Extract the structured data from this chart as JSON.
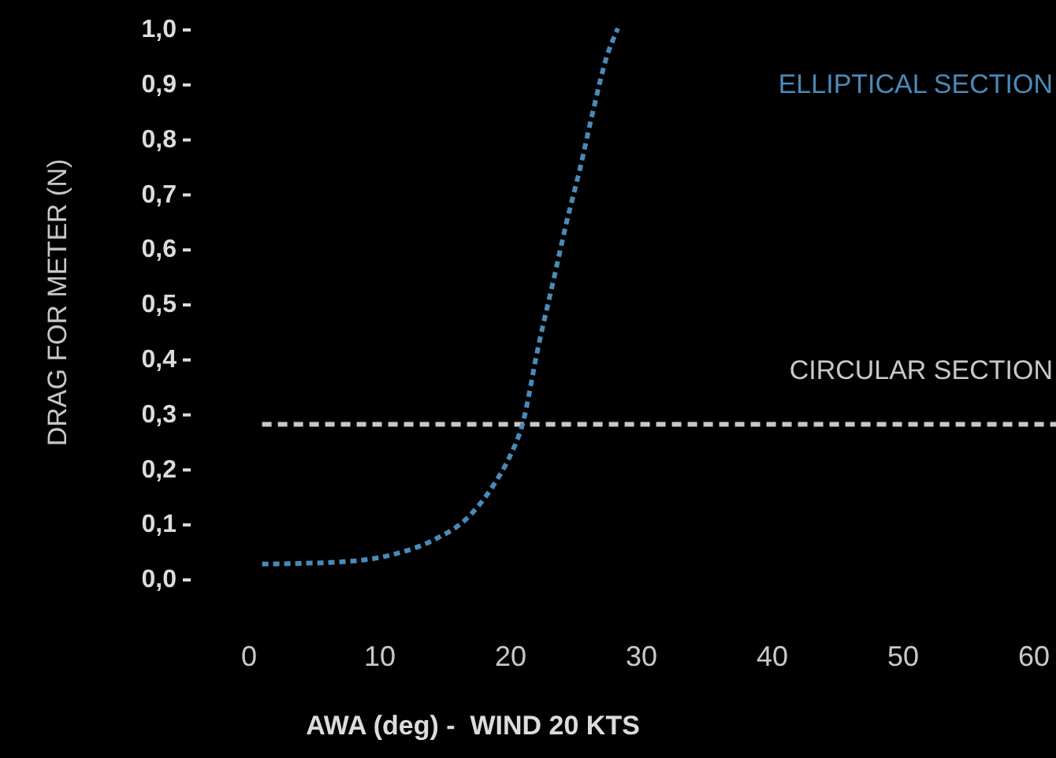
{
  "chart_data": {
    "type": "line",
    "xlabel": "AWA (deg) -  WIND 20 KTS",
    "ylabel": "DRAG FOR METER (N)",
    "xlim": [
      0,
      60
    ],
    "xticks": [
      0,
      10,
      20,
      30,
      40,
      50,
      60
    ],
    "ylim": [
      0,
      1
    ],
    "yticks": [
      {
        "value": 0,
        "label": "0,0"
      },
      {
        "value": 0.1,
        "label": "0,1"
      },
      {
        "value": 0.2,
        "label": "0,2"
      },
      {
        "value": 0.3,
        "label": "0,3"
      },
      {
        "value": 0.4,
        "label": "0,4"
      },
      {
        "value": 0.5,
        "label": "0,5"
      },
      {
        "value": 0.6,
        "label": "0,6"
      },
      {
        "value": 0.7,
        "label": "0,7"
      },
      {
        "value": 0.8,
        "label": "0,8"
      },
      {
        "value": 0.9,
        "label": "0,9"
      },
      {
        "value": 1,
        "label": "1,0"
      }
    ],
    "series": [
      {
        "name": "ELLIPTICAL SECTION",
        "color": "#4a8ab8",
        "x": [
          1,
          7.1,
          11.1,
          14.3,
          16.7,
          18.7,
          19.9,
          20.9,
          22.1,
          23.3,
          24.3,
          25.3,
          26.3,
          27.3,
          28.2
        ],
        "values": [
          0.026,
          0.03,
          0.044,
          0.072,
          0.11,
          0.17,
          0.22,
          0.28,
          0.42,
          0.545,
          0.65,
          0.745,
          0.85,
          0.945,
          1
        ]
      }
    ],
    "ref_lines": [
      {
        "axis": "y",
        "value": 0.28,
        "label": "CIRCULAR SECTION",
        "color": "#c8c8c8",
        "line_style": "dashed"
      }
    ],
    "line_style": "dotted",
    "grid": false,
    "legend": "top right"
  }
}
